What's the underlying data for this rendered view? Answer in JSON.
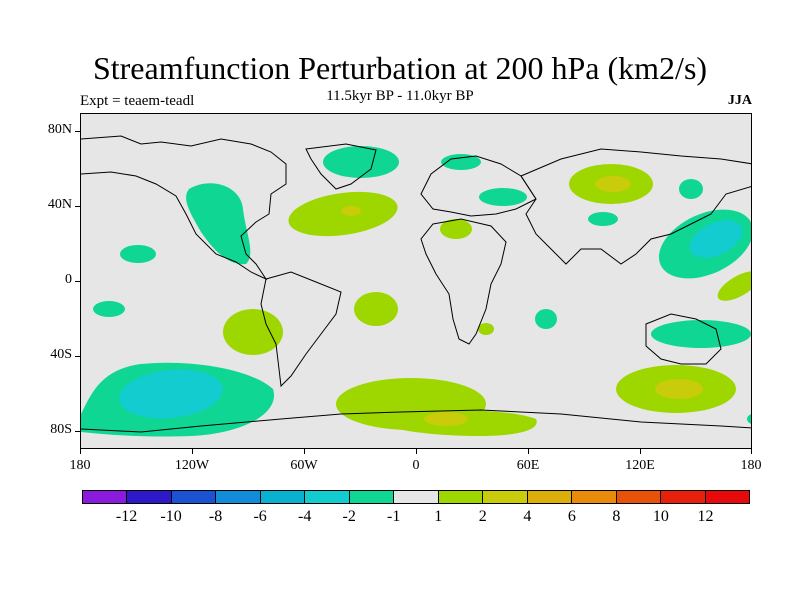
{
  "title": "Streamfunction Perturbation at 200 hPa (km2/s)",
  "subtitle": "11.5kyr BP - 11.0kyr BP",
  "left_label": "Expt = teaem-teadl",
  "right_label": "JJA",
  "lat_labels": [
    "80N",
    "40N",
    "0",
    "40S",
    "80S"
  ],
  "lon_labels": [
    "180",
    "120W",
    "60W",
    "0",
    "60E",
    "120E",
    "180"
  ],
  "colorbar": {
    "labels": [
      "-12",
      "-10",
      "-8",
      "-6",
      "-4",
      "-2",
      "-1",
      "1",
      "2",
      "4",
      "6",
      "8",
      "10",
      "12"
    ],
    "colors": [
      "#8a1adc",
      "#2e19c8",
      "#1a52d2",
      "#128cd8",
      "#0ab0d0",
      "#12ccd0",
      "#10d694",
      "#e6e6e6",
      "#9ed600",
      "#c8cc0a",
      "#dcae0a",
      "#e88a0a",
      "#e6520a",
      "#e6200a",
      "#e60a0a"
    ]
  },
  "field_colors": {
    "neg_light": "#10d694",
    "neg_mid": "#12ccd0",
    "pos_light": "#9ed600",
    "pos_mid": "#c8cc0a",
    "pos_strong": "#dcae0a",
    "land_background": "#e6e6e6",
    "coast": "#000000"
  }
}
